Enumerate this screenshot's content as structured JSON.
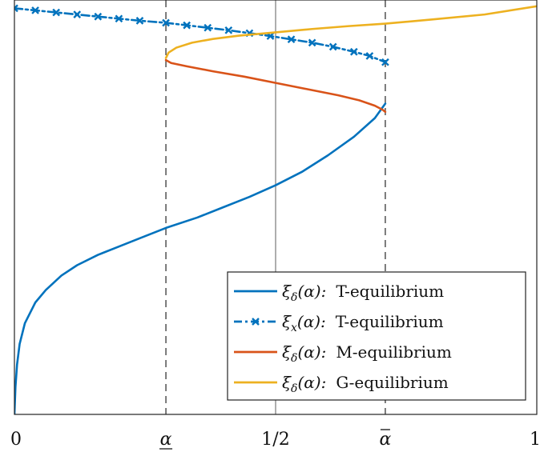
{
  "chart_data": {
    "type": "line",
    "title": "",
    "xlabel": "",
    "ylabel": "",
    "xlim": [
      0,
      1
    ],
    "ylim": [
      0,
      1
    ],
    "grid": false,
    "legend_position": "bottom-right",
    "xticks": [
      {
        "value": 0,
        "label": "0"
      },
      {
        "value": 0.29,
        "label": "α",
        "decoration": "underline"
      },
      {
        "value": 0.5,
        "label": "1/2"
      },
      {
        "value": 0.71,
        "label": "α",
        "decoration": "bar"
      },
      {
        "value": 1,
        "label": "1"
      }
    ],
    "reference_lines": [
      {
        "x": 0.29,
        "style": "dashed",
        "color": "#444444"
      },
      {
        "x": 0.5,
        "style": "solid",
        "color": "#999999"
      },
      {
        "x": 0.71,
        "style": "dashed",
        "color": "#444444"
      }
    ],
    "series": [
      {
        "name": "ξδ(α): T-equilibrium",
        "legend_parts": {
          "symbol": "ξ",
          "sub": "δ",
          "arg": "(α):",
          "label": "T-equilibrium"
        },
        "color": "#0072BD",
        "style": "solid",
        "marker": "none",
        "x": [
          0,
          0.002,
          0.005,
          0.01,
          0.02,
          0.04,
          0.06,
          0.09,
          0.12,
          0.16,
          0.2,
          0.24,
          0.29,
          0.35,
          0.4,
          0.45,
          0.5,
          0.55,
          0.6,
          0.65,
          0.69,
          0.71
        ],
        "y": [
          0,
          0.066,
          0.12,
          0.17,
          0.22,
          0.27,
          0.3,
          0.335,
          0.36,
          0.385,
          0.405,
          0.425,
          0.45,
          0.475,
          0.5,
          0.525,
          0.553,
          0.585,
          0.625,
          0.67,
          0.715,
          0.75
        ]
      },
      {
        "name": "ξx(α): T-equilibrium",
        "legend_parts": {
          "symbol": "ξ",
          "sub": "x",
          "arg": "(α):",
          "label": "T-equilibrium"
        },
        "color": "#0072BD",
        "style": "dashdot",
        "marker": "x",
        "x": [
          0,
          0.04,
          0.08,
          0.12,
          0.16,
          0.2,
          0.24,
          0.29,
          0.33,
          0.37,
          0.41,
          0.45,
          0.49,
          0.53,
          0.57,
          0.61,
          0.65,
          0.68,
          0.71
        ],
        "y": [
          0.98,
          0.975,
          0.97,
          0.965,
          0.96,
          0.955,
          0.95,
          0.945,
          0.939,
          0.933,
          0.927,
          0.92,
          0.913,
          0.905,
          0.897,
          0.887,
          0.875,
          0.865,
          0.85
        ]
      },
      {
        "name": "ξδ(α): M-equilibrium",
        "legend_parts": {
          "symbol": "ξ",
          "sub": "δ",
          "arg": "(α):",
          "label": "M-equilibrium"
        },
        "color": "#D95319",
        "style": "solid",
        "marker": "none",
        "x": [
          0.29,
          0.3,
          0.33,
          0.38,
          0.44,
          0.5,
          0.56,
          0.62,
          0.66,
          0.69,
          0.705,
          0.71
        ],
        "y": [
          0.855,
          0.848,
          0.84,
          0.828,
          0.815,
          0.8,
          0.785,
          0.77,
          0.758,
          0.745,
          0.735,
          0.73
        ]
      },
      {
        "name": "ξδ(α): G-equilibrium",
        "legend_parts": {
          "symbol": "ξ",
          "sub": "δ",
          "arg": "(α):",
          "label": "G-equilibrium"
        },
        "color": "#EDB120",
        "style": "solid",
        "marker": "none",
        "x": [
          0.29,
          0.295,
          0.31,
          0.34,
          0.38,
          0.43,
          0.5,
          0.57,
          0.64,
          0.71,
          0.8,
          0.9,
          1.0
        ],
        "y": [
          0.86,
          0.873,
          0.885,
          0.897,
          0.906,
          0.914,
          0.922,
          0.93,
          0.937,
          0.943,
          0.953,
          0.965,
          0.985
        ]
      }
    ]
  }
}
